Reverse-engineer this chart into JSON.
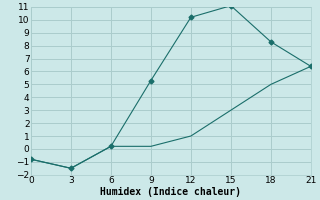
{
  "xlabel": "Humidex (Indice chaleur)",
  "background_color": "#cce8e8",
  "grid_color": "#aacccc",
  "line_color": "#1a6e6a",
  "line1_x": [
    0,
    3,
    6,
    9,
    12,
    15,
    18,
    21
  ],
  "line1_y": [
    -0.8,
    -1.5,
    0.2,
    5.3,
    10.2,
    11.1,
    8.3,
    6.4
  ],
  "line2_x": [
    0,
    3,
    6,
    9,
    12,
    15,
    18,
    21
  ],
  "line2_y": [
    -0.8,
    -1.5,
    0.2,
    0.2,
    1.0,
    3.0,
    5.0,
    6.4
  ],
  "xlim": [
    0,
    21
  ],
  "ylim": [
    -2,
    11
  ],
  "xticks": [
    0,
    3,
    6,
    9,
    12,
    15,
    18,
    21
  ],
  "yticks": [
    -2,
    -1,
    0,
    1,
    2,
    3,
    4,
    5,
    6,
    7,
    8,
    9,
    10,
    11
  ],
  "xlabel_fontsize": 7,
  "tick_fontsize": 6.5
}
